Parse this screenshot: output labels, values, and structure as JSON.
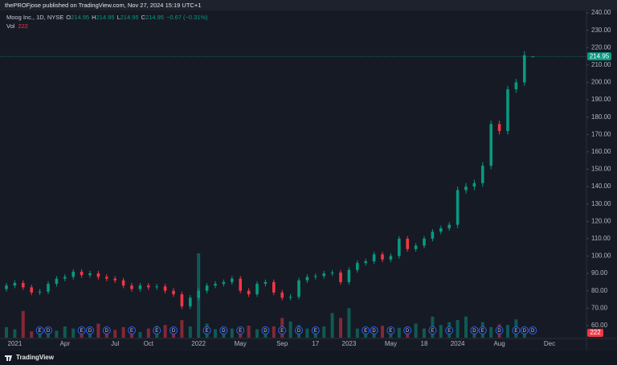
{
  "chart_data": {
    "type": "candlestick",
    "title": "thePROFjose published on TradingView.com, Nov 27, 2024 15:19 UTC+1",
    "symbol": "Moog Inc., 1D, NYSE",
    "ohlc_labels": [
      "O",
      "H",
      "L",
      "C"
    ],
    "change": "−0.67 (−0.31%)",
    "volume_label": "Vol",
    "brand": "TradingView",
    "categories": [
      null,
      "2021",
      null,
      null,
      null,
      null,
      null,
      "Apr",
      null,
      null,
      null,
      null,
      null,
      "Jul",
      null,
      null,
      null,
      "Oct",
      null,
      null,
      null,
      null,
      null,
      "2022",
      null,
      null,
      null,
      null,
      "May",
      null,
      null,
      null,
      null,
      "Sep",
      null,
      null,
      null,
      "17",
      null,
      null,
      null,
      "2023",
      null,
      null,
      null,
      null,
      "May",
      null,
      null,
      null,
      "18",
      null,
      null,
      null,
      "2024",
      null,
      null,
      null,
      null,
      "Aug",
      null,
      null,
      null,
      null,
      null,
      "Dec"
    ],
    "open": [
      81,
      83,
      84.5,
      82,
      79,
      79.5,
      84,
      87,
      88,
      91,
      89,
      90,
      88,
      87,
      86,
      83,
      81,
      83,
      82,
      82.5,
      80,
      78,
      71,
      76,
      80,
      83,
      84,
      85,
      87,
      80,
      78,
      84,
      85,
      79,
      76,
      76.5,
      86,
      88,
      88.5,
      90,
      90.5,
      85,
      92,
      96,
      97,
      101,
      98,
      100,
      110,
      104,
      106,
      110,
      114,
      116,
      118,
      138,
      140,
      142,
      152,
      176,
      172,
      196,
      200,
      214.95,
      null,
      null
    ],
    "high": [
      84.5,
      86,
      86,
      83.5,
      81,
      85.5,
      88.5,
      89.5,
      92.5,
      92.5,
      91.5,
      91.5,
      89.5,
      88.5,
      87.5,
      84.5,
      84.5,
      84.5,
      84,
      84,
      81.5,
      79.5,
      77.5,
      81.5,
      84.5,
      85.5,
      86.5,
      88.5,
      88.5,
      81.5,
      85.5,
      86.5,
      86.5,
      80.5,
      78,
      87.5,
      89.5,
      90,
      91.5,
      92,
      92,
      93.5,
      97.5,
      98.5,
      102.5,
      102.5,
      101.5,
      111.5,
      111.5,
      107.5,
      111.5,
      115.5,
      117.5,
      119.5,
      140,
      142,
      144,
      154,
      178,
      178,
      198,
      202,
      218,
      214.95,
      null,
      null
    ],
    "low": [
      79.5,
      81.5,
      80.5,
      77.5,
      77.5,
      78,
      82.5,
      85.5,
      86.5,
      87.5,
      87.5,
      86.5,
      85.5,
      84.5,
      81.5,
      79.5,
      79.5,
      80.5,
      80.5,
      78.5,
      76.5,
      69.5,
      69.5,
      74.5,
      78.5,
      81.5,
      82.5,
      83.5,
      78.5,
      76.5,
      76.5,
      82.5,
      77.5,
      74.5,
      74.5,
      75,
      84.5,
      86.5,
      87,
      88.5,
      83.5,
      83.5,
      90.5,
      94.5,
      95.5,
      96.5,
      96.5,
      98.5,
      102.5,
      102.5,
      104.5,
      108.5,
      112.5,
      114.5,
      116,
      136,
      138,
      140,
      150,
      170,
      170,
      194,
      198,
      214.95,
      null,
      null
    ],
    "close": [
      83,
      84.5,
      82,
      79,
      79.5,
      84,
      87,
      88,
      91,
      89,
      90,
      88,
      87,
      86,
      83,
      81,
      83,
      82,
      82.5,
      80,
      78,
      71,
      76,
      80,
      83,
      84,
      85,
      87,
      80,
      78,
      84,
      85,
      79,
      76,
      76.5,
      86,
      88,
      88.5,
      90,
      90.5,
      85,
      92,
      96,
      97,
      101,
      98,
      100,
      110,
      104,
      106,
      110,
      114,
      116,
      118,
      138,
      140,
      142,
      152,
      176,
      172,
      196,
      200,
      215.62,
      214.95,
      null,
      null
    ],
    "volume": [
      150000,
      120000,
      380000,
      90000,
      110000,
      140000,
      100000,
      160000,
      130000,
      90000,
      120000,
      200000,
      100000,
      110000,
      150000,
      90000,
      80000,
      130000,
      170000,
      180000,
      140000,
      250000,
      160000,
      1200000,
      200000,
      120000,
      110000,
      130000,
      150000,
      170000,
      120000,
      140000,
      160000,
      280000,
      230000,
      180000,
      130000,
      110000,
      160000,
      350000,
      280000,
      420000,
      130000,
      150000,
      110000,
      170000,
      120000,
      140000,
      160000,
      200000,
      130000,
      300000,
      180000,
      220000,
      250000,
      300000,
      130000,
      220000,
      150000,
      190000,
      180000,
      260000,
      150000,
      222,
      null,
      null
    ],
    "events": [
      null,
      null,
      null,
      null,
      "E",
      "D",
      null,
      null,
      null,
      "E",
      "D",
      null,
      "D",
      null,
      null,
      "E",
      null,
      null,
      "E",
      null,
      "D",
      null,
      null,
      null,
      "E",
      null,
      "D",
      null,
      "E",
      null,
      null,
      "D",
      null,
      "E",
      null,
      "D",
      null,
      "E",
      null,
      null,
      null,
      null,
      null,
      "E",
      "D",
      null,
      "E",
      null,
      "D",
      null,
      null,
      "E",
      null,
      "E",
      null,
      null,
      "D",
      "E",
      null,
      "D",
      null,
      "E",
      "D",
      "D",
      null,
      null
    ],
    "ylim": [
      53,
      242.8
    ],
    "yticks": [
      {
        "value": 60,
        "label": "60.00"
      },
      {
        "value": 70,
        "label": "70.00"
      },
      {
        "value": 80,
        "label": "80.00"
      },
      {
        "value": 90,
        "label": "90.00"
      },
      {
        "value": 100,
        "label": "100.00"
      },
      {
        "value": 110,
        "label": "110.00"
      },
      {
        "value": 120,
        "label": "120.00"
      },
      {
        "value": 130,
        "label": "130.00"
      },
      {
        "value": 140,
        "label": "140.00"
      },
      {
        "value": 150,
        "label": "150.00"
      },
      {
        "value": 160,
        "label": "160.00"
      },
      {
        "value": 170,
        "label": "170.00"
      },
      {
        "value": 180,
        "label": "180.00"
      },
      {
        "value": 190,
        "label": "190.00"
      },
      {
        "value": 200,
        "label": "200.00"
      },
      {
        "value": 210,
        "label": "210.00"
      },
      {
        "value": 220,
        "label": "220.00"
      },
      {
        "value": 230,
        "label": "230.00"
      },
      {
        "value": 240,
        "label": "240.00"
      }
    ],
    "colors": {
      "up": "#089981",
      "down": "#f23645",
      "event": "#2962ff"
    }
  }
}
